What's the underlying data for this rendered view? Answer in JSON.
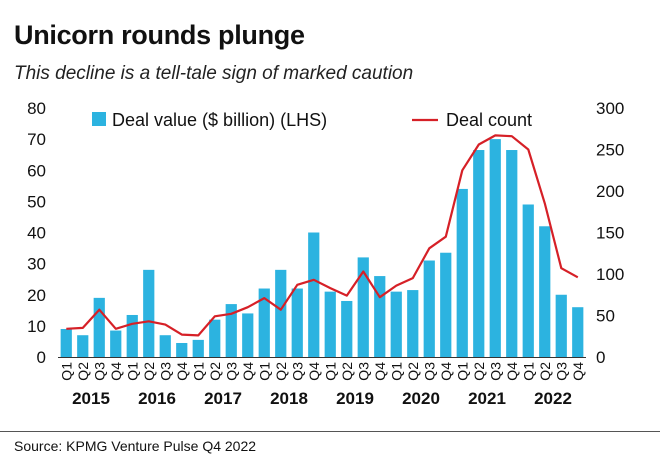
{
  "header": {
    "title": "Unicorn rounds plunge",
    "subtitle": "This decline is a tell-tale sign of marked caution"
  },
  "footer": {
    "source": "Source: KPMG Venture Pulse Q4 2022"
  },
  "colors": {
    "bar": "#2cb3e0",
    "line": "#d62027",
    "axis": "#333333"
  },
  "chart_data": {
    "type": "bar",
    "title": "Unicorn rounds plunge",
    "subtitle": "This decline is a tell-tale sign of marked caution",
    "categories": [
      "Q1",
      "Q2",
      "Q3",
      "Q4",
      "Q1",
      "Q2",
      "Q3",
      "Q4",
      "Q1",
      "Q2",
      "Q3",
      "Q4",
      "Q1",
      "Q2",
      "Q3",
      "Q4",
      "Q1",
      "Q2",
      "Q3",
      "Q4",
      "Q1",
      "Q2",
      "Q3",
      "Q4",
      "Q1",
      "Q2",
      "Q3",
      "Q4",
      "Q1",
      "Q2",
      "Q3",
      "Q4"
    ],
    "years": [
      {
        "label": "2015",
        "start": 0,
        "end": 3
      },
      {
        "label": "2016",
        "start": 4,
        "end": 7
      },
      {
        "label": "2017",
        "start": 8,
        "end": 11
      },
      {
        "label": "2018",
        "start": 12,
        "end": 15
      },
      {
        "label": "2019",
        "start": 16,
        "end": 19
      },
      {
        "label": "2020",
        "start": 20,
        "end": 23
      },
      {
        "label": "2021",
        "start": 24,
        "end": 27
      },
      {
        "label": "2022",
        "start": 28,
        "end": 31
      }
    ],
    "series": [
      {
        "name": "Deal value ($ billion) (LHS)",
        "type": "bar",
        "axis": "left",
        "values": [
          9,
          7,
          19,
          8.5,
          13.5,
          28,
          7,
          4.5,
          5.5,
          12,
          17,
          14,
          22,
          28,
          22,
          40,
          21,
          18,
          32,
          26,
          21,
          21.5,
          31,
          33.5,
          54,
          66.5,
          70,
          66.5,
          49,
          42,
          20,
          16
        ]
      },
      {
        "name": "Deal count",
        "type": "line",
        "axis": "right",
        "values": [
          34,
          35,
          57,
          34,
          40,
          43,
          39,
          27,
          26,
          49,
          52,
          60,
          71,
          57,
          87,
          93,
          83,
          74,
          103,
          72,
          86,
          95,
          131,
          145,
          225,
          256,
          267,
          266,
          250,
          185,
          107,
          96
        ]
      }
    ],
    "y_left": {
      "min": 0,
      "max": 80,
      "ticks": [
        0,
        10,
        20,
        30,
        40,
        50,
        60,
        70,
        80
      ]
    },
    "y_right": {
      "min": 0,
      "max": 300,
      "ticks": [
        0,
        50,
        100,
        150,
        200,
        250,
        300
      ]
    },
    "legend": "top",
    "grid": false
  }
}
